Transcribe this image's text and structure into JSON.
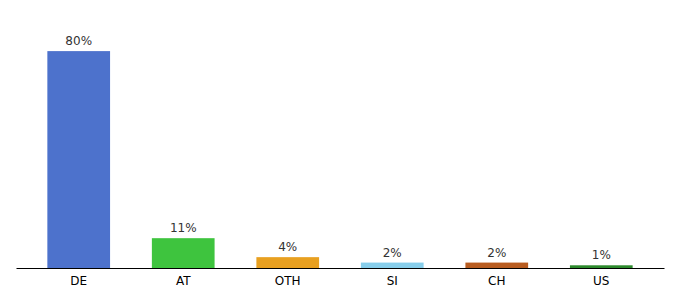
{
  "chart_data": {
    "type": "bar",
    "categories": [
      "DE",
      "AT",
      "OTH",
      "SI",
      "CH",
      "US"
    ],
    "values": [
      80,
      11,
      4,
      2,
      2,
      1
    ],
    "value_labels": [
      "80%",
      "11%",
      "4%",
      "2%",
      "2%",
      "1%"
    ],
    "colors": [
      "#4d72cc",
      "#3ec43e",
      "#e8a020",
      "#87ceeb",
      "#b85c20",
      "#2d8a2d"
    ],
    "ylim": [
      0,
      90
    ],
    "grid": false,
    "data_labels": true,
    "tick_labels": "x"
  }
}
